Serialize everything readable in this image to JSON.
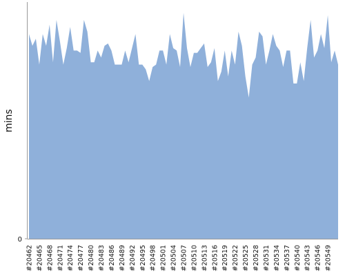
{
  "chart_data": {
    "type": "area",
    "y_label": "mins",
    "color": "#8fb0da",
    "ylim": [
      0,
      100
    ],
    "yticks": [
      0
    ],
    "categories": [
      "#20462",
      null,
      null,
      "#20465",
      null,
      null,
      "#20468",
      null,
      null,
      "#20471",
      null,
      null,
      "#20474",
      null,
      null,
      "#20477",
      null,
      null,
      "#20480",
      null,
      null,
      "#20483",
      null,
      null,
      "#20486",
      null,
      null,
      "#20489",
      null,
      null,
      "#20492",
      null,
      null,
      "#20495",
      null,
      null,
      "#20498",
      null,
      null,
      "#20501",
      null,
      null,
      "#20504",
      null,
      null,
      "#20507",
      null,
      null,
      "#20510",
      null,
      null,
      "#20513",
      null,
      null,
      "#20516",
      null,
      null,
      "#20519",
      null,
      null,
      "#20522",
      null,
      null,
      "#20525",
      null,
      null,
      "#20528",
      null,
      null,
      "#20531",
      null,
      null,
      "#20534",
      null,
      null,
      "#20537",
      null,
      null,
      "#20540",
      null,
      null,
      "#20543",
      null,
      null,
      "#20546",
      null,
      null,
      "#20549",
      null,
      null,
      null
    ],
    "values": [
      87,
      82,
      85,
      74,
      87,
      82,
      91,
      75,
      93,
      84,
      74,
      81,
      90,
      80,
      80,
      79,
      93,
      88,
      75,
      75,
      80,
      77,
      82,
      83,
      80,
      74,
      74,
      74,
      80,
      75,
      81,
      87,
      74,
      74,
      72,
      67,
      73,
      74,
      80,
      80,
      74,
      87,
      81,
      80,
      73,
      96,
      81,
      73,
      79,
      79,
      81,
      83,
      73,
      75,
      81,
      67,
      71,
      80,
      69,
      80,
      74,
      88,
      82,
      69,
      60,
      74,
      77,
      88,
      86,
      74,
      80,
      87,
      82,
      80,
      73,
      80,
      80,
      66,
      66,
      75,
      67,
      81,
      93,
      77,
      80,
      87,
      81,
      95,
      75,
      80,
      74
    ]
  }
}
